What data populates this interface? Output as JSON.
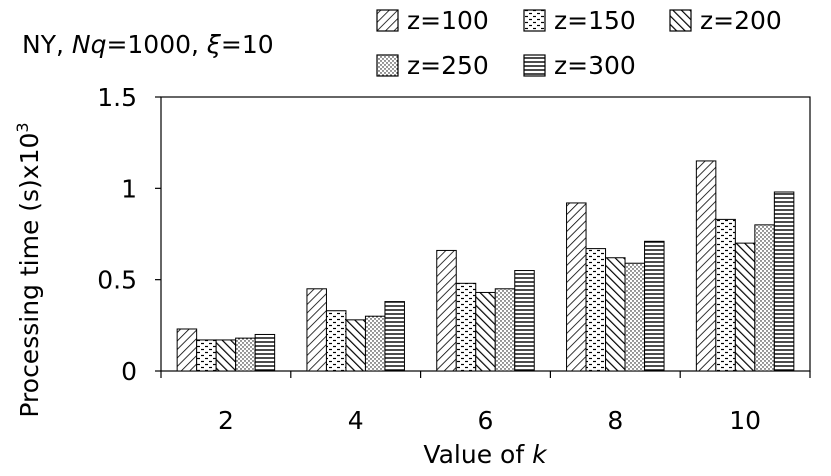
{
  "chart_data": {
    "type": "bar",
    "title_parts": {
      "prefix": "NY, ",
      "nq_italic": "Nq",
      "nq_value": "=1000, ",
      "xi_italic": "ξ",
      "xi_value": "=10"
    },
    "xlabel_parts": {
      "text": "Value of ",
      "italic": "k"
    },
    "ylabel_parts": {
      "text": "Processing time (s)x10",
      "sup": "3"
    },
    "categories": [
      "2",
      "4",
      "6",
      "8",
      "10"
    ],
    "ylim": [
      0,
      1.5
    ],
    "yticks": [
      "0",
      "0.5",
      "1",
      "1.5"
    ],
    "grid": false,
    "legend_placement": "top",
    "series": [
      {
        "name": "z=100",
        "pattern": "diag-left",
        "values": [
          0.23,
          0.45,
          0.66,
          0.92,
          1.15
        ]
      },
      {
        "name": "z=150",
        "pattern": "dashes",
        "values": [
          0.17,
          0.33,
          0.48,
          0.67,
          0.83
        ]
      },
      {
        "name": "z=200",
        "pattern": "diag-right",
        "values": [
          0.17,
          0.28,
          0.43,
          0.62,
          0.7
        ]
      },
      {
        "name": "z=250",
        "pattern": "dots",
        "values": [
          0.18,
          0.3,
          0.45,
          0.59,
          0.8
        ]
      },
      {
        "name": "z=300",
        "pattern": "horizontal",
        "values": [
          0.2,
          0.38,
          0.55,
          0.71,
          0.98
        ]
      }
    ]
  }
}
